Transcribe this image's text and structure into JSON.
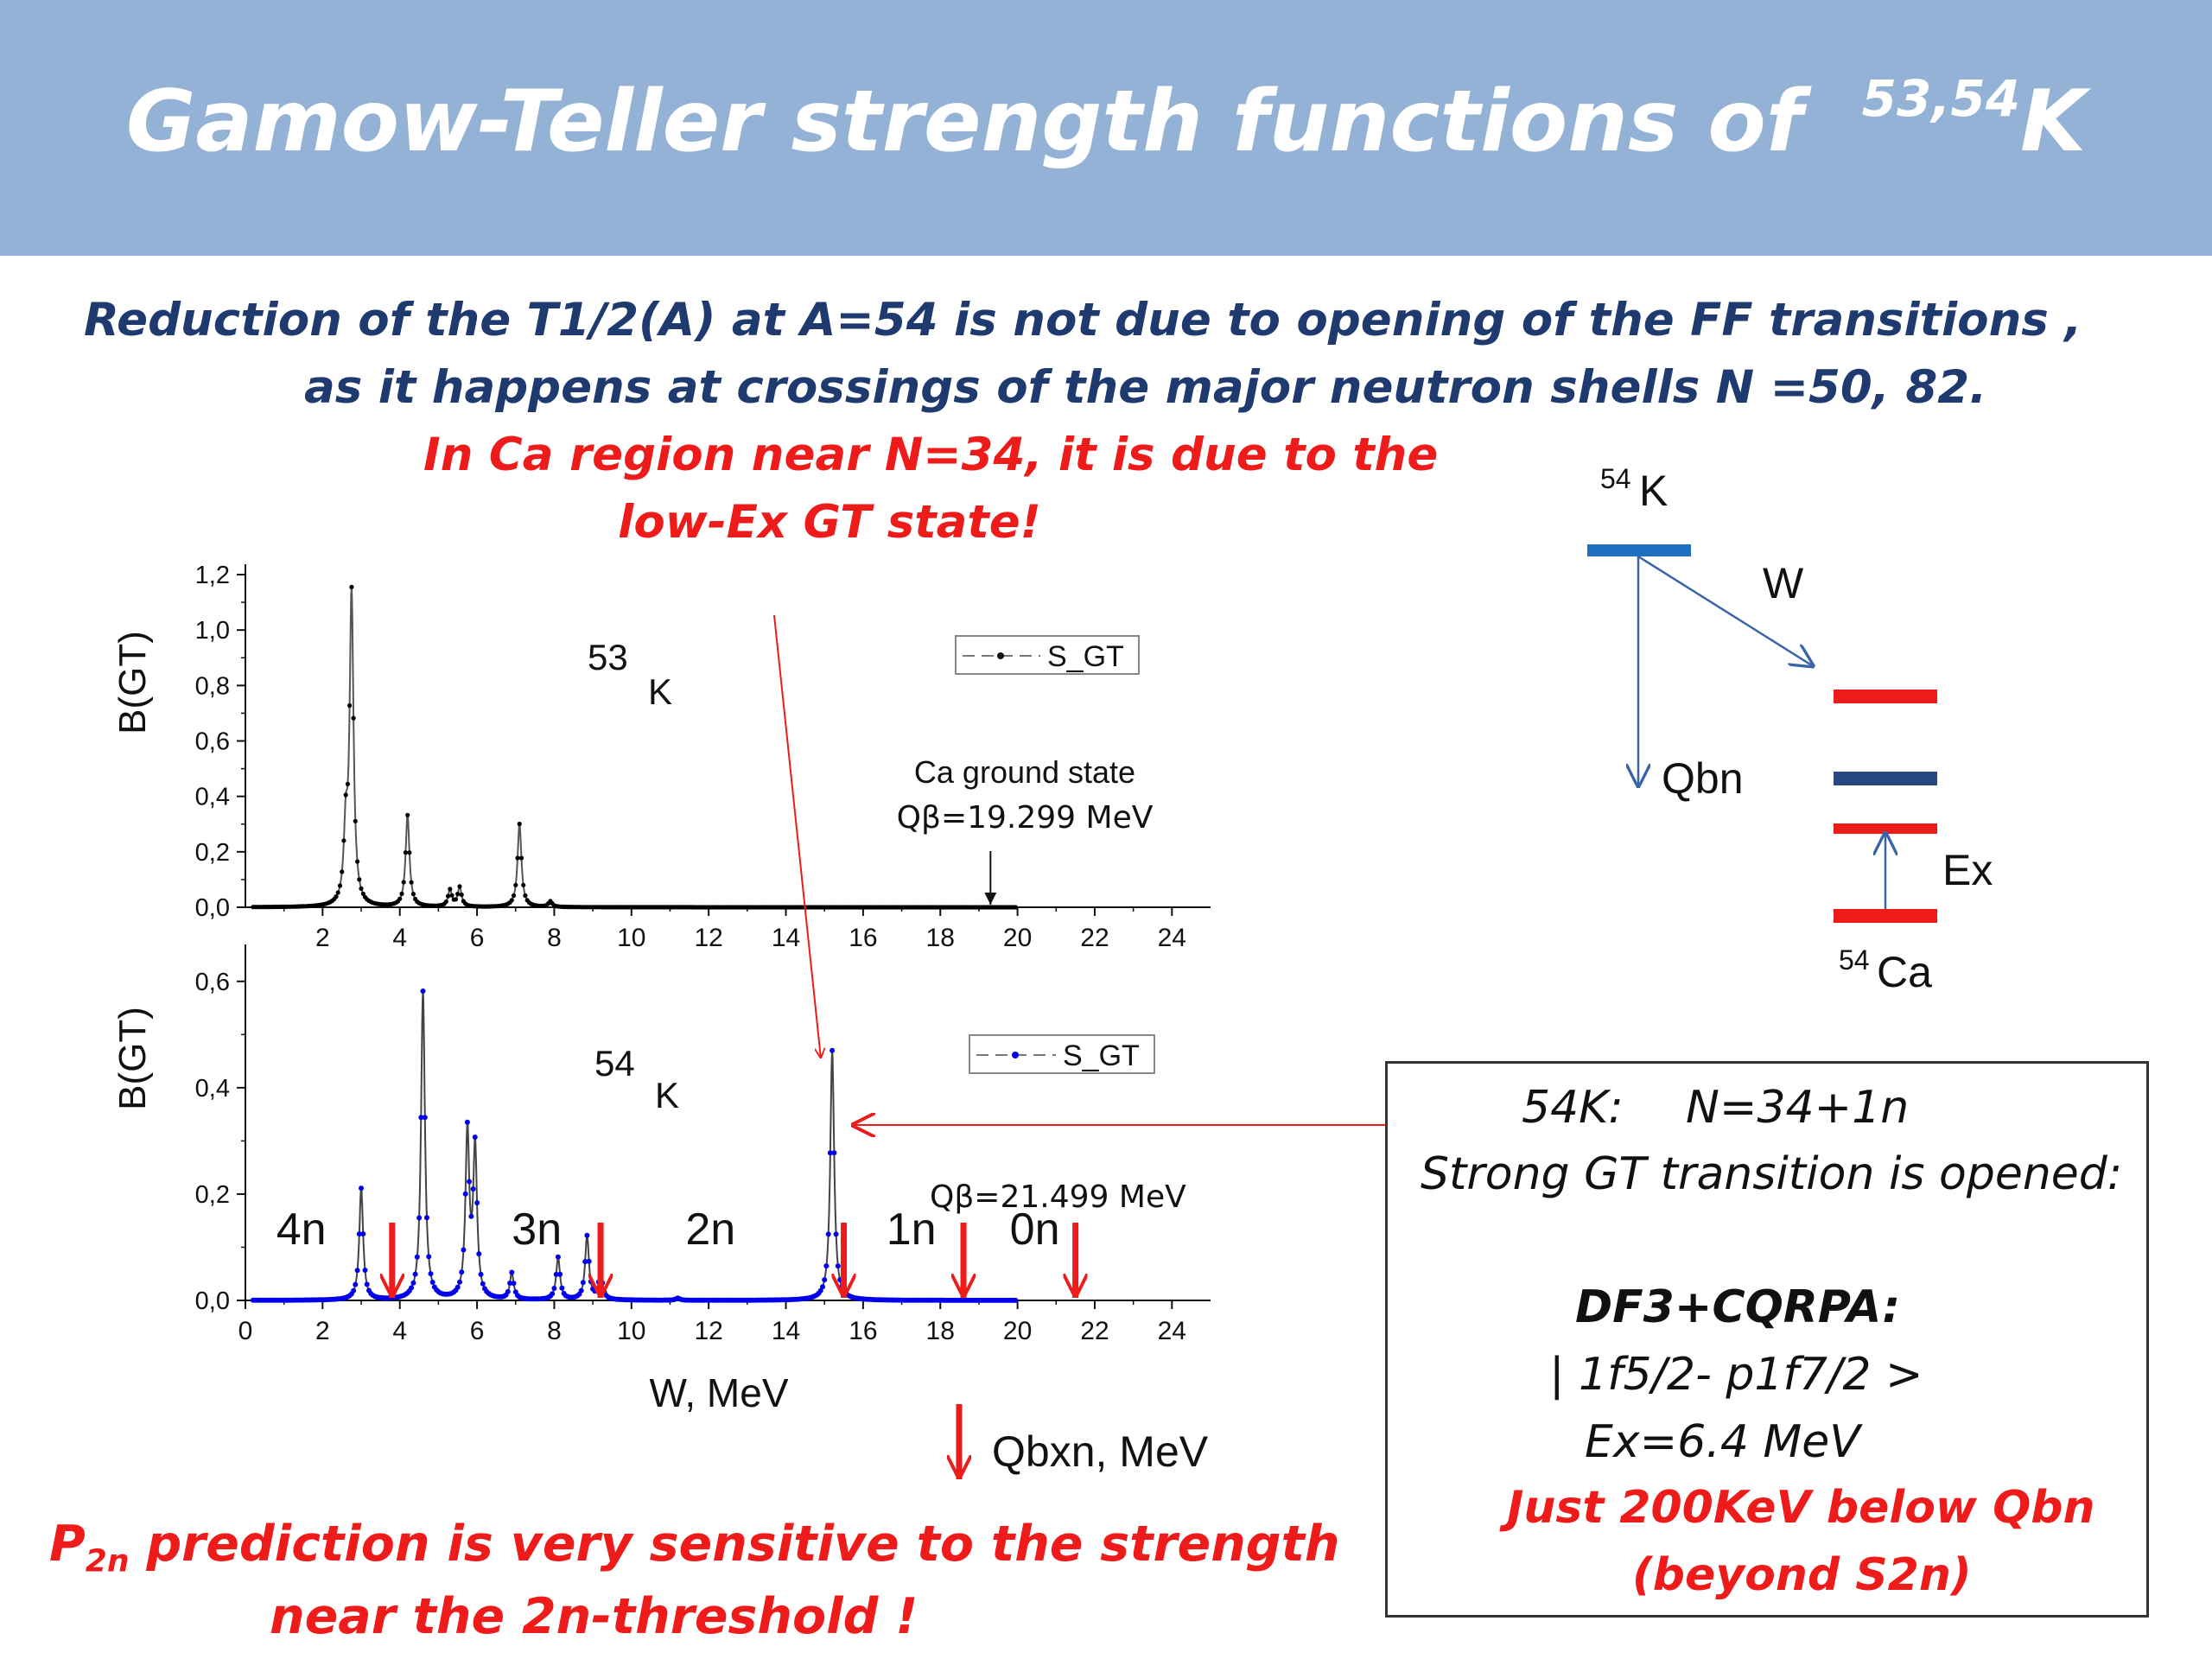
{
  "slide": {
    "title_main": "Gamow-Teller  strength functions  of",
    "title_sup": "53,54",
    "title_elem": "K",
    "banner_color": "#94b2d6"
  },
  "text": {
    "line1": "Reduction of the T1/2(A) at A=54  is not  due to  opening of the  FF  transitions ,",
    "line2": "as  it happens at crossings of the major neutron shells N =50,  82.",
    "red1": "In Ca region near  N=34, it is due to the",
    "red2": "low-Ex GT state!",
    "bottom1_sym": "P",
    "bottom1_sub": "2n",
    "bottom1_rest": " prediction is very sensitive to the strength",
    "bottom2": "near the 2n-threshold !",
    "legend_qbxn": "Qbxn, MeV"
  },
  "diagram": {
    "parent_mass": "54",
    "parent_elem": "K",
    "w_label": "W",
    "qbn_label": "Qbn",
    "ex_label": "Ex",
    "daughter_mass": "54",
    "daughter_elem": "Ca",
    "colors": {
      "parent_level": "#1f6fc0",
      "red_level": "#ee1b1b",
      "navy_level": "#264a7f",
      "arrow": "#3a64a6"
    }
  },
  "infobox": {
    "l1a": "54K:",
    "l1b": "N=34+1n",
    "l2": "Strong GT transition is opened:",
    "l3": "DF3+CQRPA:",
    "l4": "| 1f5/2- p1f7/2 >",
    "l5": "Ex=6.4 MeV",
    "l6": "Just 200KeV  below Qbn",
    "l7": "(beyond S2n)"
  },
  "chart_data": [
    {
      "type": "line",
      "ylabel": "B(GT)",
      "xlim": [
        0,
        25
      ],
      "ylim": [
        0,
        1.2
      ],
      "xticks": [
        "2",
        "4",
        "6",
        "8",
        "10",
        "12",
        "14",
        "16",
        "18",
        "20",
        "22",
        "24"
      ],
      "yticks": [
        "0,0",
        "0,2",
        "0,4",
        "0,6",
        "0,8",
        "1,0",
        "1,2"
      ],
      "nucleus_mass": "53",
      "nucleus_elem": "K",
      "series": [
        {
          "name": "S_GT",
          "color": "#000000",
          "peaks": [
            {
              "x": 2.6,
              "y": 0.25
            },
            {
              "x": 2.75,
              "y": 1.12
            },
            {
              "x": 4.2,
              "y": 0.33
            },
            {
              "x": 5.3,
              "y": 0.06
            },
            {
              "x": 5.55,
              "y": 0.07
            },
            {
              "x": 7.1,
              "y": 0.3
            },
            {
              "x": 7.9,
              "y": 0.02
            }
          ]
        }
      ],
      "annotations": [
        {
          "text1": "Ca ground state",
          "text2": "Qβ=19.299 MeV",
          "x": 19.3
        }
      ]
    },
    {
      "type": "line",
      "xlabel": "W, MeV",
      "ylabel": "B(GT)",
      "xlim": [
        0,
        25
      ],
      "ylim": [
        0,
        0.65
      ],
      "xticks": [
        "0",
        "2",
        "4",
        "6",
        "8",
        "10",
        "12",
        "14",
        "16",
        "18",
        "20",
        "22",
        "24"
      ],
      "yticks": [
        "0,0",
        "0,2",
        "0,4",
        "0,6"
      ],
      "nucleus_mass": "54",
      "nucleus_elem": "K",
      "series": [
        {
          "name": "S_GT",
          "color": "#0000ee",
          "peaks": [
            {
              "x": 3.0,
              "y": 0.21
            },
            {
              "x": 4.6,
              "y": 0.58
            },
            {
              "x": 5.75,
              "y": 0.31
            },
            {
              "x": 5.95,
              "y": 0.28
            },
            {
              "x": 6.9,
              "y": 0.05
            },
            {
              "x": 8.1,
              "y": 0.08
            },
            {
              "x": 8.85,
              "y": 0.12
            },
            {
              "x": 9.2,
              "y": 0.05
            },
            {
              "x": 11.2,
              "y": 0.004
            },
            {
              "x": 15.2,
              "y": 0.47
            }
          ]
        }
      ],
      "neutron_labels": [
        "4n",
        "3n",
        "2n",
        "1n",
        "0n"
      ],
      "thresholds_mev": [
        3.8,
        9.2,
        15.5,
        18.6,
        21.5
      ],
      "q_annotation": "Qβ=21.499 MeV"
    }
  ]
}
